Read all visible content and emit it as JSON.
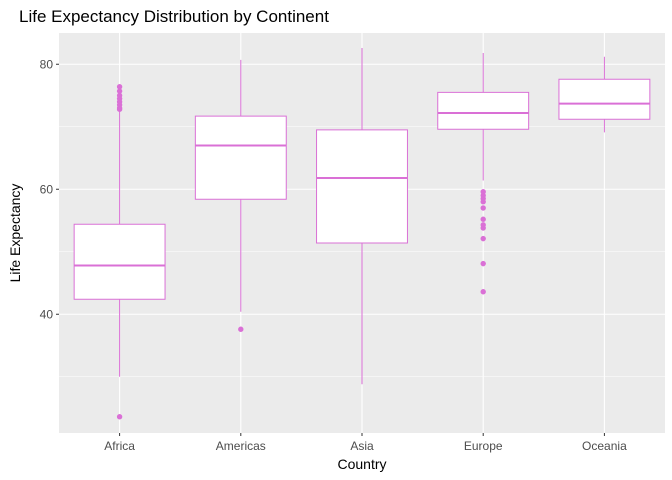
{
  "chart_data": {
    "type": "boxplot",
    "title": "Life Expectancy Distribution by Continent",
    "xlabel": "Country",
    "ylabel": "Life Expectancy",
    "ylim": [
      21,
      85
    ],
    "y_ticks": [
      40,
      60,
      80
    ],
    "y_tick_labels": [
      "40",
      "60",
      "80"
    ],
    "grid": true,
    "box_color": "#DA70D6",
    "panel_background": "#EBEBEB",
    "categories": [
      "Africa",
      "Americas",
      "Asia",
      "Europe",
      "Oceania"
    ],
    "boxes": [
      {
        "category": "Africa",
        "min": 30.0,
        "q1": 42.4,
        "median": 47.8,
        "q3": 54.4,
        "max": 72.8,
        "outliers": [
          23.6,
          72.8,
          73.0,
          73.5,
          74.0,
          74.5,
          75.0,
          75.7,
          76.4
        ]
      },
      {
        "category": "Americas",
        "min": 40.4,
        "q1": 58.4,
        "median": 67.0,
        "q3": 71.7,
        "max": 80.7,
        "outliers": [
          37.6
        ]
      },
      {
        "category": "Asia",
        "min": 28.8,
        "q1": 51.4,
        "median": 61.8,
        "q3": 69.5,
        "max": 82.6,
        "outliers": []
      },
      {
        "category": "Europe",
        "min": 61.4,
        "q1": 69.6,
        "median": 72.2,
        "q3": 75.5,
        "max": 81.8,
        "outliers": [
          43.6,
          48.1,
          52.1,
          53.8,
          54.3,
          55.2,
          57.0,
          58.0,
          58.5,
          59.0,
          59.6
        ]
      },
      {
        "category": "Oceania",
        "min": 69.1,
        "q1": 71.2,
        "median": 73.7,
        "q3": 77.6,
        "max": 81.2,
        "outliers": []
      }
    ]
  }
}
